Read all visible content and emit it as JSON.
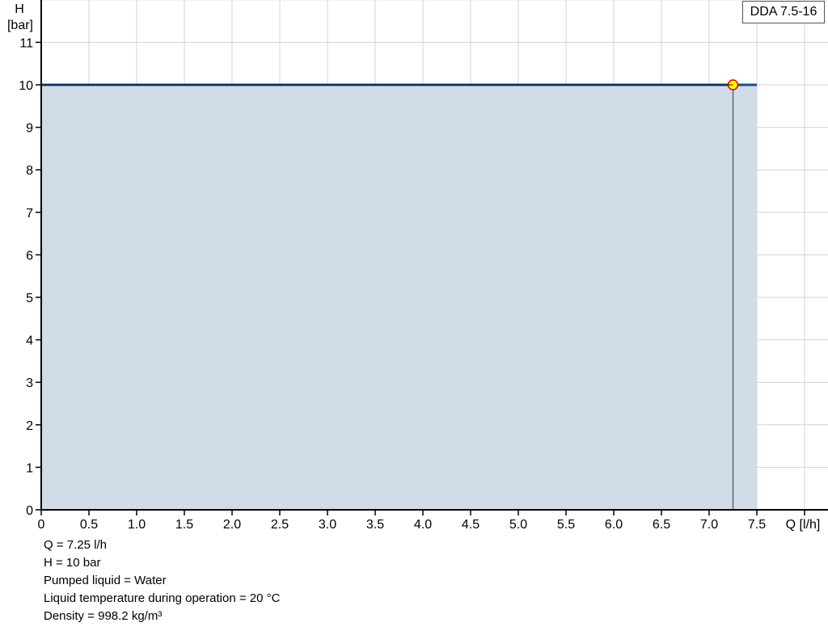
{
  "chart_data": {
    "type": "area",
    "title": "",
    "xlabel": "Q [l/h]",
    "ylabel_line1": "H",
    "ylabel_line2": "[bar]",
    "xlim": [
      0,
      8.25
    ],
    "ylim": [
      0,
      12
    ],
    "grid": true,
    "x_ticks": [
      "0",
      "0.5",
      "1.0",
      "1.5",
      "2.0",
      "2.5",
      "3.0",
      "3.5",
      "4.0",
      "4.5",
      "5.0",
      "5.5",
      "6.0",
      "6.5",
      "7.0",
      "7.5"
    ],
    "x_tick_values": [
      0,
      0.5,
      1.0,
      1.5,
      2.0,
      2.5,
      3.0,
      3.5,
      4.0,
      4.5,
      5.0,
      5.5,
      6.0,
      6.5,
      7.0,
      7.5
    ],
    "y_ticks": [
      "0",
      "1",
      "2",
      "3",
      "4",
      "5",
      "6",
      "7",
      "8",
      "9",
      "10",
      "11"
    ],
    "y_tick_values": [
      0,
      1,
      2,
      3,
      4,
      5,
      6,
      7,
      8,
      9,
      10,
      11
    ],
    "series": [
      {
        "x": [
          0,
          7.5
        ],
        "y": [
          10,
          10
        ],
        "color": "#1b4f82",
        "fill": "#d0dce8"
      }
    ],
    "duty_point": {
      "x": 7.25,
      "y": 10,
      "fill": "#ffff00",
      "stroke": "#e00000"
    },
    "legend": {
      "label": "DDA 7.5-16",
      "placement": "top-right"
    }
  },
  "info": [
    "Q = 7.25 l/h",
    "H = 10 bar",
    "Pumped liquid = Water",
    "Liquid temperature during operation = 20 °C",
    "Density = 998.2 kg/m³"
  ]
}
